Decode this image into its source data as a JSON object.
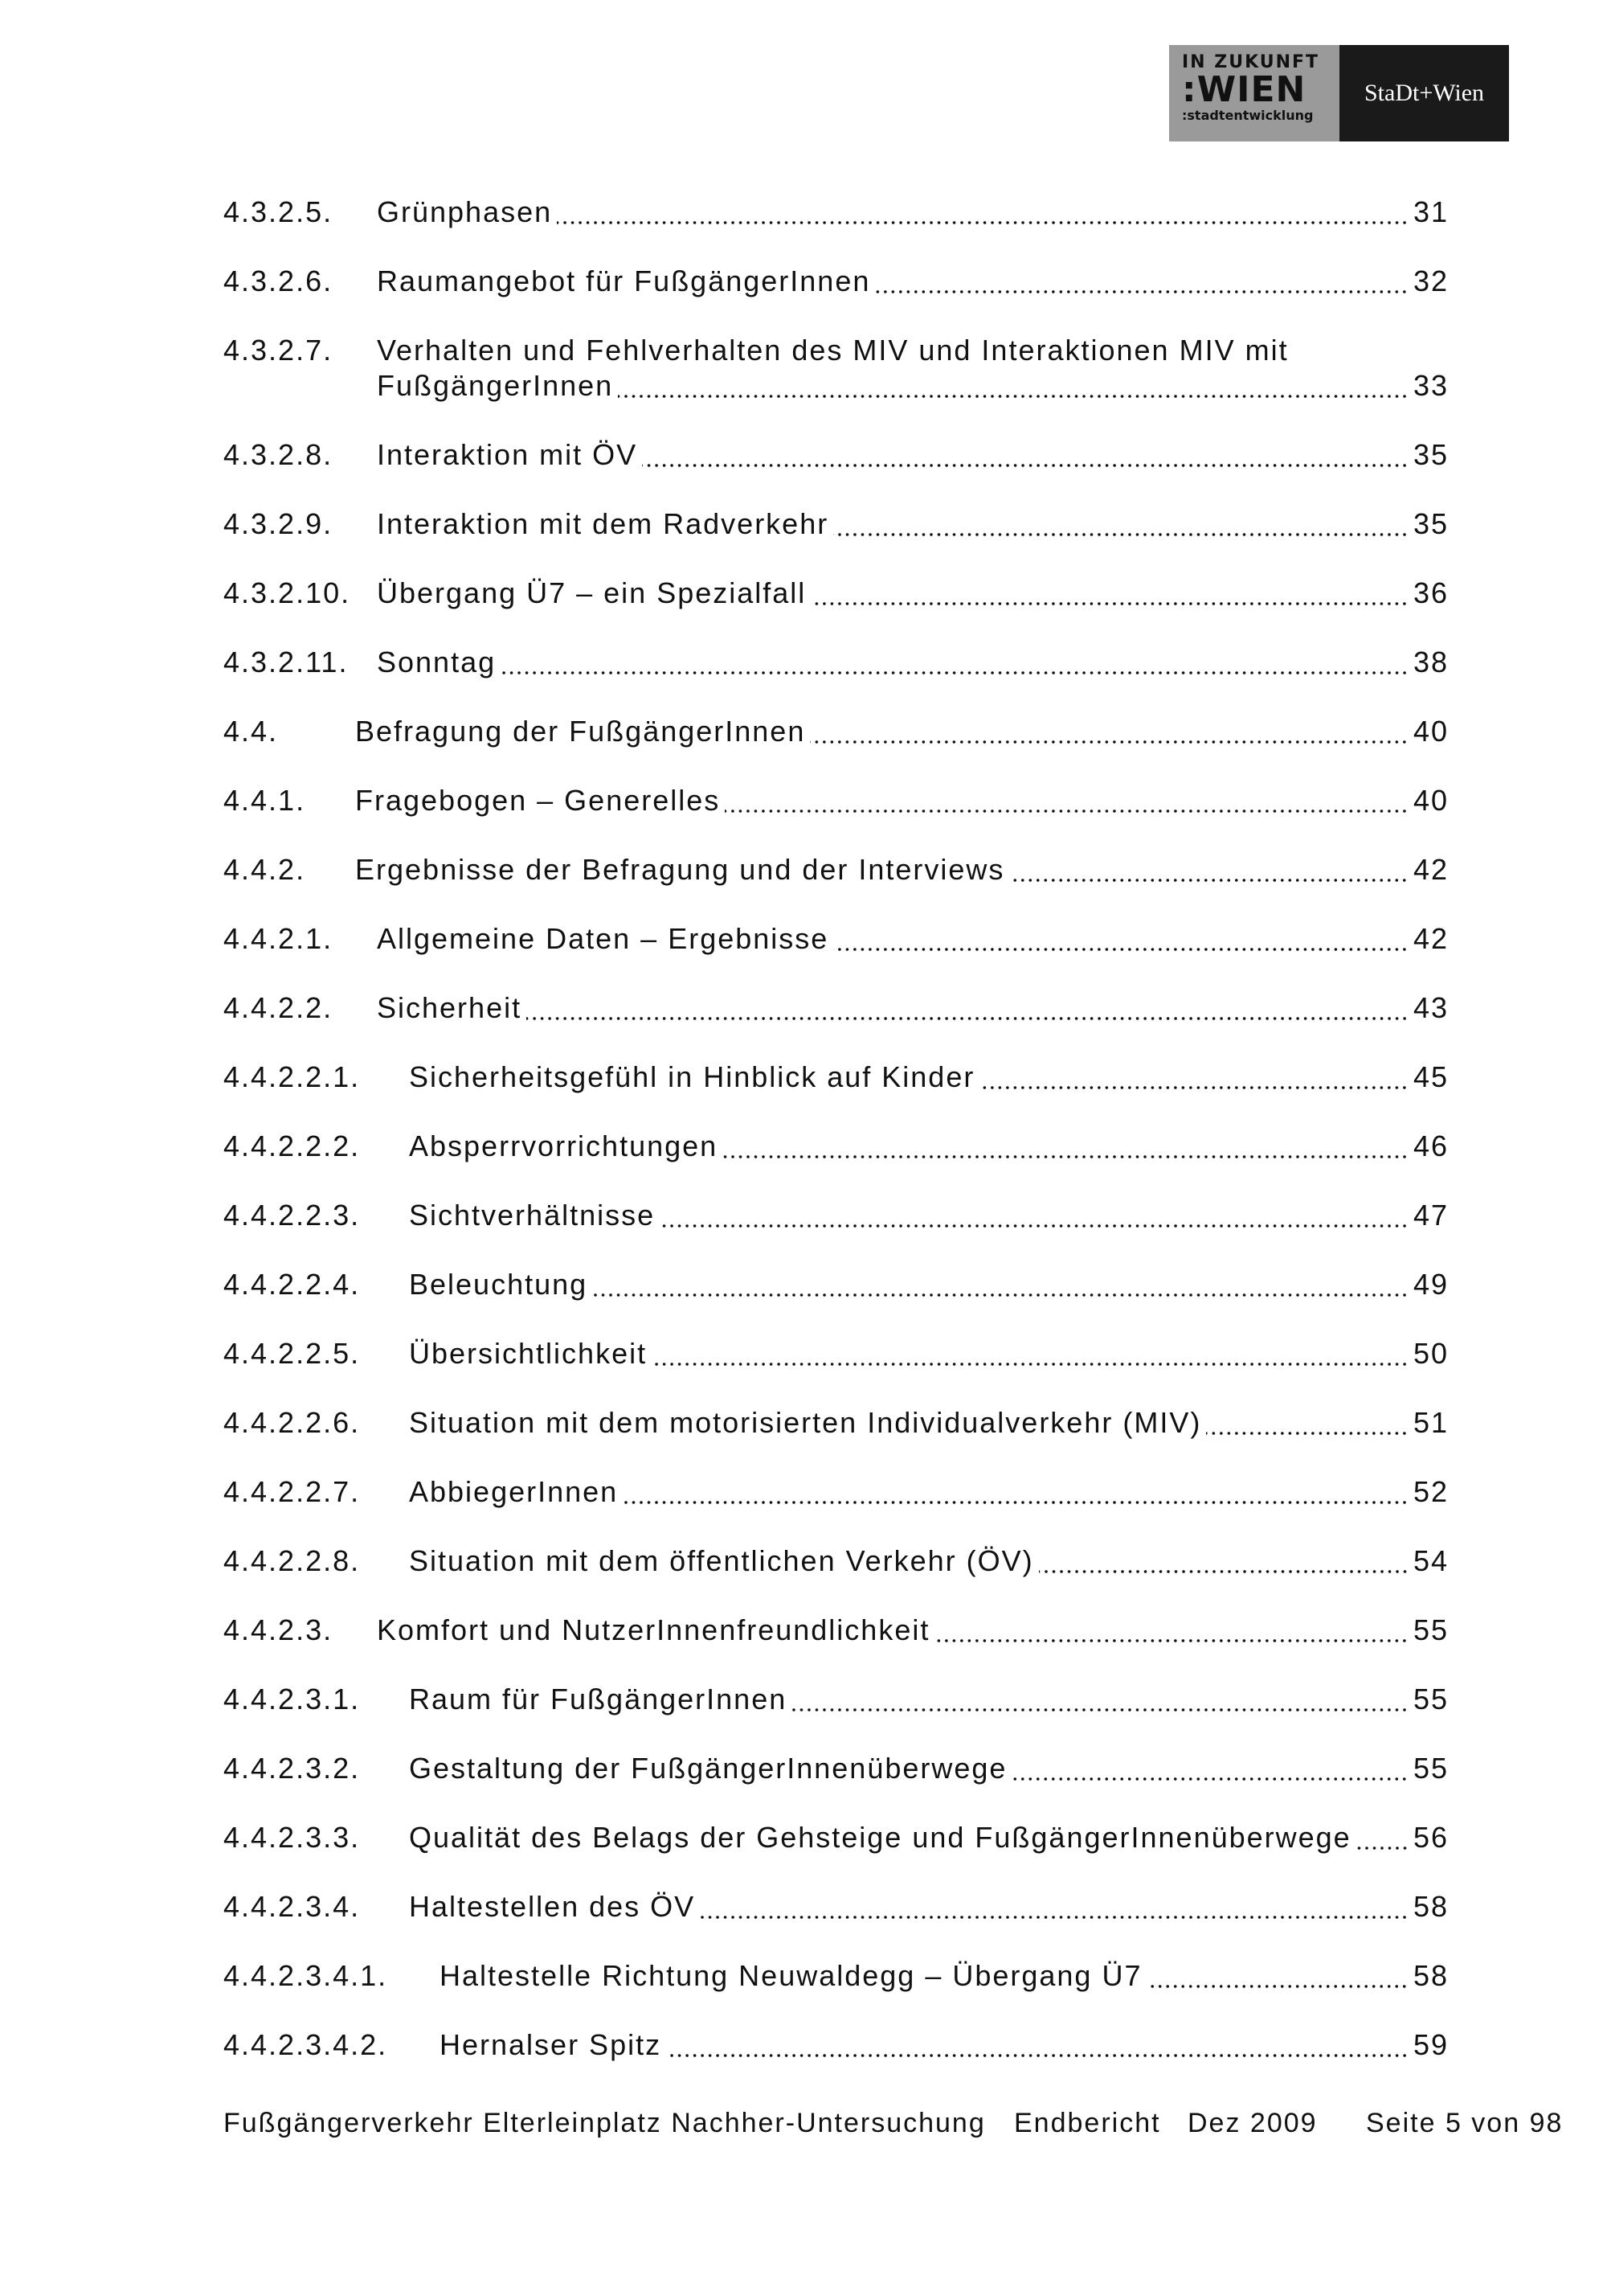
{
  "logo": {
    "line1": "IN ZUKUNFT",
    "line2": ":WIEN",
    "line3": ":stadtentwicklung",
    "city": "StaDt+Wien"
  },
  "toc": [
    {
      "number": "4.3.2.5.",
      "title": "Grünphasen",
      "page": "31"
    },
    {
      "number": "4.3.2.6.",
      "title": "Raumangebot für FußgängerInnen",
      "page": "32"
    },
    {
      "number": "4.3.2.7.",
      "title": [
        "Verhalten und Fehlverhalten des MIV und Interaktionen MIV mit",
        "FußgängerInnen"
      ],
      "page": "33"
    },
    {
      "number": "4.3.2.8.",
      "title": "Interaktion mit ÖV",
      "page": "35"
    },
    {
      "number": "4.3.2.9.",
      "title": "Interaktion mit dem Radverkehr",
      "page": "35"
    },
    {
      "number": "4.3.2.10.",
      "title": "Übergang Ü7 – ein Spezialfall",
      "page": "36"
    },
    {
      "number": "4.3.2.11.",
      "title": "Sonntag",
      "page": "38"
    },
    {
      "number": "4.4.",
      "title": "Befragung der FußgängerInnen",
      "page": "40"
    },
    {
      "number": "4.4.1.",
      "title": "Fragebogen – Generelles",
      "page": "40"
    },
    {
      "number": "4.4.2.",
      "title": "Ergebnisse der Befragung und der Interviews",
      "page": "42"
    },
    {
      "number": "4.4.2.1.",
      "title": "Allgemeine Daten – Ergebnisse",
      "page": "42"
    },
    {
      "number": "4.4.2.2.",
      "title": "Sicherheit",
      "page": "43"
    },
    {
      "number": "4.4.2.2.1.",
      "title": "Sicherheitsgefühl in Hinblick auf Kinder",
      "page": "45"
    },
    {
      "number": "4.4.2.2.2.",
      "title": "Absperrvorrichtungen",
      "page": "46"
    },
    {
      "number": "4.4.2.2.3.",
      "title": "Sichtverhältnisse",
      "page": "47"
    },
    {
      "number": "4.4.2.2.4.",
      "title": "Beleuchtung",
      "page": "49"
    },
    {
      "number": "4.4.2.2.5.",
      "title": "Übersichtlichkeit",
      "page": "50"
    },
    {
      "number": "4.4.2.2.6.",
      "title": "Situation mit dem motorisierten Individualverkehr (MIV)",
      "page": "51"
    },
    {
      "number": "4.4.2.2.7.",
      "title": "AbbiegerInnen",
      "page": "52"
    },
    {
      "number": "4.4.2.2.8.",
      "title": "Situation mit dem öffentlichen Verkehr (ÖV)",
      "page": "54"
    },
    {
      "number": "4.4.2.3.",
      "title": "Komfort und NutzerInnenfreundlichkeit",
      "page": "55"
    },
    {
      "number": "4.4.2.3.1.",
      "title": "Raum für FußgängerInnen",
      "page": "55"
    },
    {
      "number": "4.4.2.3.2.",
      "title": "Gestaltung der FußgängerInnenüberwege",
      "page": "55"
    },
    {
      "number": "4.4.2.3.3.",
      "title": "Qualität des Belags der Gehsteige und FußgängerInnenüberwege",
      "page": "56"
    },
    {
      "number": "4.4.2.3.4.",
      "title": "Haltestellen des ÖV",
      "page": "58"
    },
    {
      "number": "4.4.2.3.4.1.",
      "title": "Haltestelle Richtung Neuwaldegg – Übergang Ü7",
      "page": "58"
    },
    {
      "number": "4.4.2.3.4.2.",
      "title": "Hernalser Spitz",
      "page": "59"
    }
  ],
  "footer": {
    "title": "Fußgängerverkehr Elterleinplatz Nachher-Untersuchung",
    "type": "Endbericht",
    "date": "Dez 2009",
    "page": "Seite 5 von 98"
  }
}
